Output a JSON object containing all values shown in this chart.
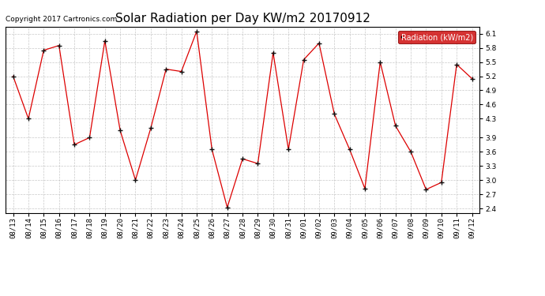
{
  "title": "Solar Radiation per Day KW/m2 20170912",
  "copyright": "Copyright 2017 Cartronics.com",
  "legend_label": "Radiation (kW/m2)",
  "dates": [
    "08/13",
    "08/14",
    "08/15",
    "08/16",
    "08/17",
    "08/18",
    "08/19",
    "08/20",
    "08/21",
    "08/22",
    "08/23",
    "08/24",
    "08/25",
    "08/26",
    "08/27",
    "08/28",
    "08/29",
    "08/30",
    "08/31",
    "09/01",
    "09/02",
    "09/03",
    "09/04",
    "09/05",
    "09/06",
    "09/07",
    "09/08",
    "09/09",
    "09/10",
    "09/11",
    "09/12"
  ],
  "values": [
    5.2,
    4.3,
    5.75,
    5.85,
    3.75,
    3.9,
    5.95,
    4.05,
    3.0,
    4.1,
    5.35,
    5.3,
    6.15,
    3.65,
    2.42,
    3.45,
    3.35,
    5.7,
    3.65,
    5.55,
    5.9,
    4.4,
    3.65,
    2.82,
    5.5,
    4.15,
    3.6,
    2.8,
    2.95,
    5.45,
    5.15
  ],
  "line_color": "#dd0000",
  "marker_color": "#111111",
  "background_color": "#ffffff",
  "grid_color": "#bbbbbb",
  "legend_bg": "#cc0000",
  "legend_text_color": "#ffffff",
  "ylim": [
    2.3,
    6.25
  ],
  "yticks": [
    2.4,
    2.7,
    3.0,
    3.3,
    3.6,
    3.9,
    4.3,
    4.6,
    4.9,
    5.2,
    5.5,
    5.8,
    6.1
  ],
  "title_fontsize": 11,
  "copyright_fontsize": 6.5,
  "tick_fontsize": 6.5,
  "legend_fontsize": 7
}
